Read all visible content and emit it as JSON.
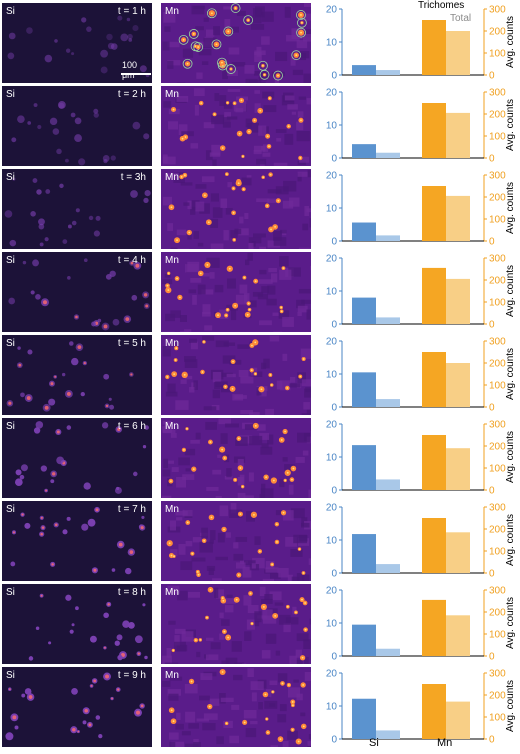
{
  "panels": [
    {
      "time_label": "t = 1 h"
    },
    {
      "time_label": "t = 2 h"
    },
    {
      "time_label": "t = 3h"
    },
    {
      "time_label": "t = 4 h"
    },
    {
      "time_label": "t = 5 h"
    },
    {
      "time_label": "t = 6 h"
    },
    {
      "time_label": "t = 7 h"
    },
    {
      "time_label": "t = 8 h"
    },
    {
      "time_label": "t = 9 h"
    }
  ],
  "image_labels": {
    "si": "Si",
    "mn": "Mn"
  },
  "scale_bar": "100 μm",
  "legend": {
    "trichomes": "Trichomes",
    "total": "Total"
  },
  "colors": {
    "si_trichomes": "#5b93cf",
    "si_total": "#a9c8e8",
    "mn_trichomes": "#f5a623",
    "mn_total": "#f8cf86",
    "left_axis": "#4a86c6",
    "right_axis": "#f0a020"
  },
  "chart_data": [
    {
      "type": "bar",
      "categories": [
        "Si",
        "Mn"
      ],
      "series": [
        {
          "name": "Trichomes",
          "values": [
            3.0,
            250
          ]
        },
        {
          "name": "Total",
          "values": [
            1.5,
            200
          ]
        }
      ],
      "left_ylim": [
        0,
        20
      ],
      "right_ylim": [
        0,
        300
      ],
      "ylabel": "Avg. counts"
    },
    {
      "type": "bar",
      "categories": [
        "Si",
        "Mn"
      ],
      "series": [
        {
          "name": "Trichomes",
          "values": [
            4.2,
            250
          ]
        },
        {
          "name": "Total",
          "values": [
            1.6,
            205
          ]
        }
      ],
      "left_ylim": [
        0,
        20
      ],
      "right_ylim": [
        0,
        300
      ],
      "ylabel": "Avg. counts"
    },
    {
      "type": "bar",
      "categories": [
        "Si",
        "Mn"
      ],
      "series": [
        {
          "name": "Trichomes",
          "values": [
            5.6,
            250
          ]
        },
        {
          "name": "Total",
          "values": [
            1.7,
            205
          ]
        }
      ],
      "left_ylim": [
        0,
        20
      ],
      "right_ylim": [
        0,
        300
      ],
      "ylabel": "Avg. counts"
    },
    {
      "type": "bar",
      "categories": [
        "Si",
        "Mn"
      ],
      "series": [
        {
          "name": "Trichomes",
          "values": [
            8.0,
            255
          ]
        },
        {
          "name": "Total",
          "values": [
            2.0,
            205
          ]
        }
      ],
      "left_ylim": [
        0,
        20
      ],
      "right_ylim": [
        0,
        300
      ],
      "ylabel": "Avg. counts"
    },
    {
      "type": "bar",
      "categories": [
        "Si",
        "Mn"
      ],
      "series": [
        {
          "name": "Trichomes",
          "values": [
            10.5,
            250
          ]
        },
        {
          "name": "Total",
          "values": [
            2.4,
            200
          ]
        }
      ],
      "left_ylim": [
        0,
        20
      ],
      "right_ylim": [
        0,
        300
      ],
      "ylabel": "Avg. counts"
    },
    {
      "type": "bar",
      "categories": [
        "Si",
        "Mn"
      ],
      "series": [
        {
          "name": "Trichomes",
          "values": [
            13.6,
            250
          ]
        },
        {
          "name": "Total",
          "values": [
            3.2,
            190
          ]
        }
      ],
      "left_ylim": [
        0,
        20
      ],
      "right_ylim": [
        0,
        300
      ],
      "ylabel": "Avg. counts"
    },
    {
      "type": "bar",
      "categories": [
        "Si",
        "Mn"
      ],
      "series": [
        {
          "name": "Trichomes",
          "values": [
            11.8,
            250
          ]
        },
        {
          "name": "Total",
          "values": [
            2.7,
            185
          ]
        }
      ],
      "left_ylim": [
        0,
        20
      ],
      "right_ylim": [
        0,
        300
      ],
      "ylabel": "Avg. counts"
    },
    {
      "type": "bar",
      "categories": [
        "Si",
        "Mn"
      ],
      "series": [
        {
          "name": "Trichomes",
          "values": [
            9.5,
            255
          ]
        },
        {
          "name": "Total",
          "values": [
            2.2,
            185
          ]
        }
      ],
      "left_ylim": [
        0,
        20
      ],
      "right_ylim": [
        0,
        300
      ],
      "ylabel": "Avg. counts"
    },
    {
      "type": "bar",
      "categories": [
        "Si",
        "Mn"
      ],
      "series": [
        {
          "name": "Trichomes",
          "values": [
            12.2,
            250
          ]
        },
        {
          "name": "Total",
          "values": [
            2.6,
            170
          ]
        }
      ],
      "left_ylim": [
        0,
        20
      ],
      "right_ylim": [
        0,
        300
      ],
      "ylabel": "Avg. counts"
    }
  ]
}
